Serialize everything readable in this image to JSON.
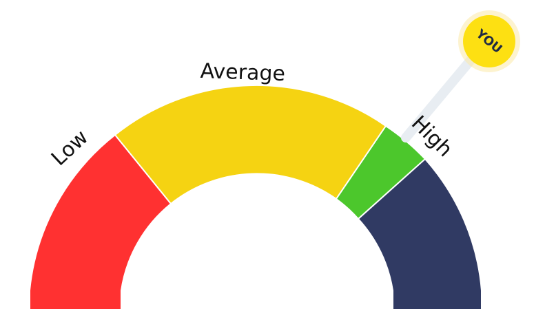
{
  "gauge": {
    "zones": [
      {
        "key": "low",
        "color": "#ff3131"
      },
      {
        "key": "average",
        "color": "#f5d312"
      },
      {
        "key": "high",
        "color": "#4cc72c"
      },
      {
        "key": "top",
        "color": "#303a63"
      }
    ],
    "labels": {
      "low": "Low",
      "average": "Average",
      "high": "High"
    },
    "pointer": {
      "label": "YOU",
      "badge_color": "#fde012",
      "stick_color": "#e8edf2"
    }
  }
}
